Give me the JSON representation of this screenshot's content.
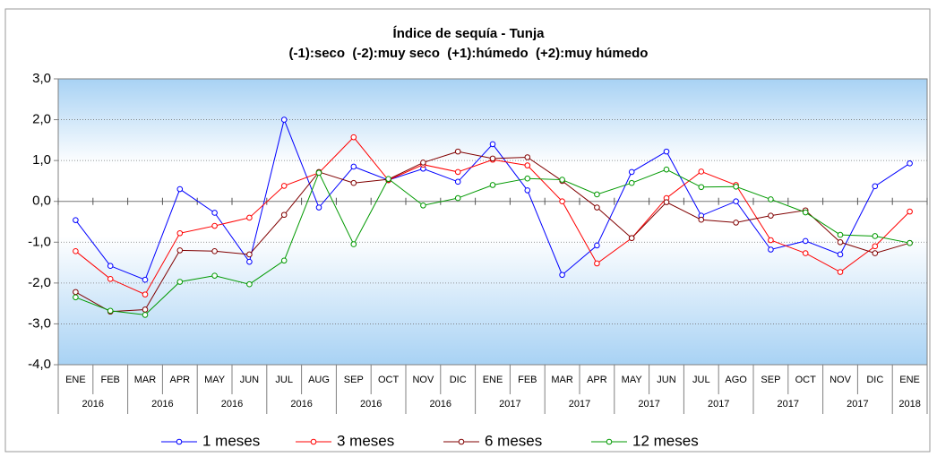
{
  "chart_data": {
    "type": "line",
    "title": "Índice de sequía - Tunja",
    "subtitle": "(-1):seco  (-2):muy seco  (+1):húmedo  (+2):muy húmedo",
    "categories": [
      "ENE",
      "FEB",
      "MAR",
      "APR",
      "MAY",
      "JUN",
      "JUL",
      "AUG",
      "SEP",
      "OCT",
      "NOV",
      "DIC",
      "ENE",
      "FEB",
      "MAR",
      "APR",
      "MAY",
      "JUN",
      "JUL",
      "AGO",
      "SEP",
      "OCT",
      "NOV",
      "DIC",
      "ENE"
    ],
    "category_groups": [
      "2016",
      "2016",
      "2016",
      "2016",
      "2016",
      "2016",
      "2017",
      "2017",
      "2017",
      "2017",
      "2017",
      "2017",
      "2018"
    ],
    "ylim": [
      -4,
      3
    ],
    "yticks": [
      {
        "value": -4,
        "label": "-4,0"
      },
      {
        "value": -3,
        "label": "-3,0"
      },
      {
        "value": -2,
        "label": "-2,0"
      },
      {
        "value": -1,
        "label": "-1,0"
      },
      {
        "value": 0,
        "label": "0,0"
      },
      {
        "value": 1,
        "label": "1,0"
      },
      {
        "value": 2,
        "label": "2,0"
      },
      {
        "value": 3,
        "label": "3,0"
      }
    ],
    "grid": true,
    "legend": "bottom",
    "series": [
      {
        "name": "1 meses",
        "color": "#0000ff",
        "values": [
          -0.46,
          -1.58,
          -1.92,
          0.3,
          -0.28,
          -1.48,
          2.0,
          -0.15,
          0.85,
          0.52,
          0.8,
          0.48,
          1.4,
          0.27,
          -1.8,
          -1.08,
          0.72,
          1.22,
          -0.35,
          0.0,
          -1.18,
          -0.97,
          -1.3,
          0.37,
          0.93
        ]
      },
      {
        "name": "3 meses",
        "color": "#ff0000",
        "values": [
          -1.22,
          -1.9,
          -2.28,
          -0.78,
          -0.6,
          -0.4,
          0.38,
          0.7,
          1.57,
          0.52,
          0.9,
          0.72,
          1.02,
          0.88,
          0.0,
          -1.52,
          -0.9,
          0.08,
          0.73,
          0.4,
          -0.95,
          -1.27,
          -1.73,
          -1.1,
          -0.25
        ]
      },
      {
        "name": "6 meses",
        "color": "#800000",
        "values": [
          -2.22,
          -2.7,
          -2.65,
          -1.2,
          -1.22,
          -1.3,
          -0.33,
          0.72,
          0.45,
          0.54,
          0.95,
          1.22,
          1.05,
          1.08,
          0.5,
          -0.15,
          -0.9,
          -0.02,
          -0.45,
          -0.52,
          -0.35,
          -0.22,
          -1.0,
          -1.27,
          -1.02
        ]
      },
      {
        "name": "12 meses",
        "color": "#009900",
        "values": [
          -2.35,
          -2.68,
          -2.78,
          -1.97,
          -1.82,
          -2.03,
          -1.45,
          0.7,
          -1.05,
          0.55,
          -0.1,
          0.08,
          0.4,
          0.56,
          0.53,
          0.17,
          0.45,
          0.78,
          0.35,
          0.36,
          0.05,
          -0.27,
          -0.82,
          -0.85,
          -1.02
        ]
      }
    ]
  }
}
